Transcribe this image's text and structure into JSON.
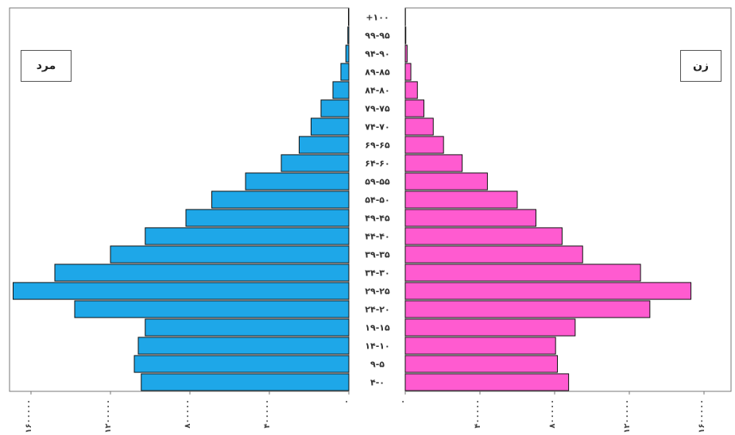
{
  "chart_data": {
    "type": "bar",
    "orientation": "horizontal-pyramid",
    "categories": [
      "۴-۰",
      "۹-۵",
      "۱۴-۱۰",
      "۱۹-۱۵",
      "۲۴-۲۰",
      "۲۹-۲۵",
      "۳۴-۳۰",
      "۳۹-۳۵",
      "۴۴-۴۰",
      "۴۹-۴۵",
      "۵۴-۵۰",
      "۵۹-۵۵",
      "۶۴-۶۰",
      "۶۹-۶۵",
      "۷۴-۷۰",
      "۷۹-۷۵",
      "۸۴-۸۰",
      "۸۹-۸۵",
      "۹۴-۹۰",
      "۹۹-۹۵",
      "+۱۰۰"
    ],
    "series": [
      {
        "name": "مرد",
        "color": "#1ea7e8",
        "values": [
          1045000,
          1080000,
          1060000,
          1025000,
          1380000,
          1690000,
          1480000,
          1200000,
          1025000,
          820000,
          690000,
          520000,
          340000,
          250000,
          190000,
          140000,
          80000,
          40000,
          15000,
          5000,
          2000
        ]
      },
      {
        "name": "زن",
        "color": "#ff5bd0",
        "values": [
          875000,
          815000,
          805000,
          910000,
          1310000,
          1530000,
          1260000,
          950000,
          840000,
          700000,
          600000,
          440000,
          305000,
          205000,
          150000,
          100000,
          65000,
          30000,
          10000,
          3000,
          1000
        ]
      }
    ],
    "xlim": [
      0,
      1800000
    ],
    "male_ticks": [
      0,
      400000,
      800000,
      1200000,
      1600000
    ],
    "female_ticks": [
      0,
      400000,
      800000,
      1200000,
      1600000
    ],
    "male_tick_labels": [
      "۰",
      "۴۰۰۰۰۰",
      "۸۰۰۰۰۰",
      "۱۲۰۰۰۰۰",
      "۱۶۰۰۰۰۰"
    ],
    "female_tick_labels": [
      "۰",
      "۴۰۰۰۰۰",
      "۸۰۰۰۰۰",
      "۱۲۰۰۰۰۰",
      "۱۶۰۰۰۰۰"
    ],
    "legend": {
      "male": "مرد",
      "female": "زن"
    },
    "grid": false
  }
}
